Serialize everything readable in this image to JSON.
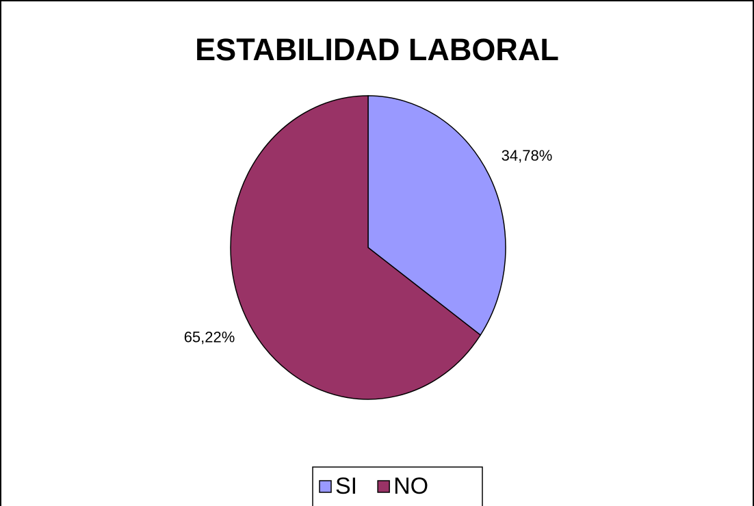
{
  "chart_data": {
    "type": "pie",
    "title": "ESTABILIDAD LABORAL",
    "categories": [
      "SI",
      "NO"
    ],
    "values": [
      34.78,
      65.22
    ],
    "value_labels": [
      "34,78%",
      "65,22%"
    ],
    "colors": [
      "#9999ff",
      "#993366"
    ],
    "legend": "bottom"
  }
}
